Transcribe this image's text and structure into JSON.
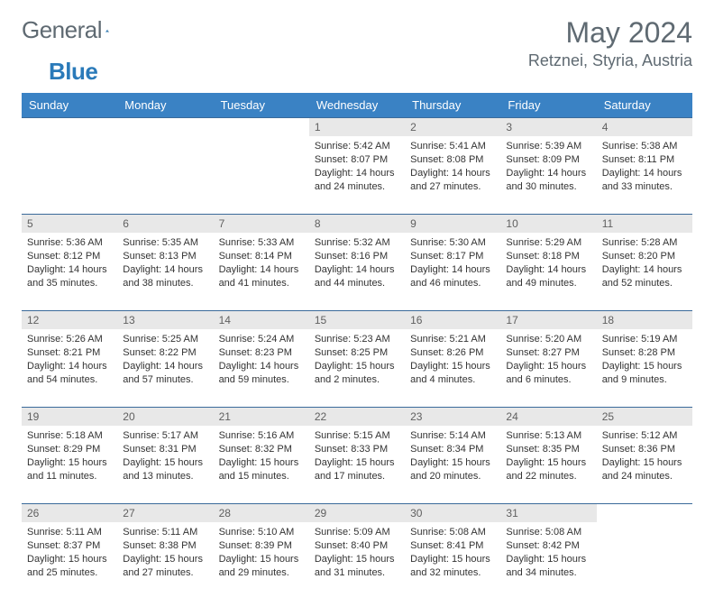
{
  "brand": {
    "name1": "General",
    "name2": "Blue"
  },
  "title": "May 2024",
  "location": "Retznei, Styria, Austria",
  "colors": {
    "header_bg": "#3a82c4",
    "border": "#3a6a9a",
    "daybar": "#e8e8e8",
    "text": "#333333",
    "muted": "#5f6a72"
  },
  "weekdays": [
    "Sunday",
    "Monday",
    "Tuesday",
    "Wednesday",
    "Thursday",
    "Friday",
    "Saturday"
  ],
  "weeks": [
    [
      null,
      null,
      null,
      {
        "d": "1",
        "sr": "Sunrise: 5:42 AM",
        "ss": "Sunset: 8:07 PM",
        "dl": "Daylight: 14 hours and 24 minutes."
      },
      {
        "d": "2",
        "sr": "Sunrise: 5:41 AM",
        "ss": "Sunset: 8:08 PM",
        "dl": "Daylight: 14 hours and 27 minutes."
      },
      {
        "d": "3",
        "sr": "Sunrise: 5:39 AM",
        "ss": "Sunset: 8:09 PM",
        "dl": "Daylight: 14 hours and 30 minutes."
      },
      {
        "d": "4",
        "sr": "Sunrise: 5:38 AM",
        "ss": "Sunset: 8:11 PM",
        "dl": "Daylight: 14 hours and 33 minutes."
      }
    ],
    [
      {
        "d": "5",
        "sr": "Sunrise: 5:36 AM",
        "ss": "Sunset: 8:12 PM",
        "dl": "Daylight: 14 hours and 35 minutes."
      },
      {
        "d": "6",
        "sr": "Sunrise: 5:35 AM",
        "ss": "Sunset: 8:13 PM",
        "dl": "Daylight: 14 hours and 38 minutes."
      },
      {
        "d": "7",
        "sr": "Sunrise: 5:33 AM",
        "ss": "Sunset: 8:14 PM",
        "dl": "Daylight: 14 hours and 41 minutes."
      },
      {
        "d": "8",
        "sr": "Sunrise: 5:32 AM",
        "ss": "Sunset: 8:16 PM",
        "dl": "Daylight: 14 hours and 44 minutes."
      },
      {
        "d": "9",
        "sr": "Sunrise: 5:30 AM",
        "ss": "Sunset: 8:17 PM",
        "dl": "Daylight: 14 hours and 46 minutes."
      },
      {
        "d": "10",
        "sr": "Sunrise: 5:29 AM",
        "ss": "Sunset: 8:18 PM",
        "dl": "Daylight: 14 hours and 49 minutes."
      },
      {
        "d": "11",
        "sr": "Sunrise: 5:28 AM",
        "ss": "Sunset: 8:20 PM",
        "dl": "Daylight: 14 hours and 52 minutes."
      }
    ],
    [
      {
        "d": "12",
        "sr": "Sunrise: 5:26 AM",
        "ss": "Sunset: 8:21 PM",
        "dl": "Daylight: 14 hours and 54 minutes."
      },
      {
        "d": "13",
        "sr": "Sunrise: 5:25 AM",
        "ss": "Sunset: 8:22 PM",
        "dl": "Daylight: 14 hours and 57 minutes."
      },
      {
        "d": "14",
        "sr": "Sunrise: 5:24 AM",
        "ss": "Sunset: 8:23 PM",
        "dl": "Daylight: 14 hours and 59 minutes."
      },
      {
        "d": "15",
        "sr": "Sunrise: 5:23 AM",
        "ss": "Sunset: 8:25 PM",
        "dl": "Daylight: 15 hours and 2 minutes."
      },
      {
        "d": "16",
        "sr": "Sunrise: 5:21 AM",
        "ss": "Sunset: 8:26 PM",
        "dl": "Daylight: 15 hours and 4 minutes."
      },
      {
        "d": "17",
        "sr": "Sunrise: 5:20 AM",
        "ss": "Sunset: 8:27 PM",
        "dl": "Daylight: 15 hours and 6 minutes."
      },
      {
        "d": "18",
        "sr": "Sunrise: 5:19 AM",
        "ss": "Sunset: 8:28 PM",
        "dl": "Daylight: 15 hours and 9 minutes."
      }
    ],
    [
      {
        "d": "19",
        "sr": "Sunrise: 5:18 AM",
        "ss": "Sunset: 8:29 PM",
        "dl": "Daylight: 15 hours and 11 minutes."
      },
      {
        "d": "20",
        "sr": "Sunrise: 5:17 AM",
        "ss": "Sunset: 8:31 PM",
        "dl": "Daylight: 15 hours and 13 minutes."
      },
      {
        "d": "21",
        "sr": "Sunrise: 5:16 AM",
        "ss": "Sunset: 8:32 PM",
        "dl": "Daylight: 15 hours and 15 minutes."
      },
      {
        "d": "22",
        "sr": "Sunrise: 5:15 AM",
        "ss": "Sunset: 8:33 PM",
        "dl": "Daylight: 15 hours and 17 minutes."
      },
      {
        "d": "23",
        "sr": "Sunrise: 5:14 AM",
        "ss": "Sunset: 8:34 PM",
        "dl": "Daylight: 15 hours and 20 minutes."
      },
      {
        "d": "24",
        "sr": "Sunrise: 5:13 AM",
        "ss": "Sunset: 8:35 PM",
        "dl": "Daylight: 15 hours and 22 minutes."
      },
      {
        "d": "25",
        "sr": "Sunrise: 5:12 AM",
        "ss": "Sunset: 8:36 PM",
        "dl": "Daylight: 15 hours and 24 minutes."
      }
    ],
    [
      {
        "d": "26",
        "sr": "Sunrise: 5:11 AM",
        "ss": "Sunset: 8:37 PM",
        "dl": "Daylight: 15 hours and 25 minutes."
      },
      {
        "d": "27",
        "sr": "Sunrise: 5:11 AM",
        "ss": "Sunset: 8:38 PM",
        "dl": "Daylight: 15 hours and 27 minutes."
      },
      {
        "d": "28",
        "sr": "Sunrise: 5:10 AM",
        "ss": "Sunset: 8:39 PM",
        "dl": "Daylight: 15 hours and 29 minutes."
      },
      {
        "d": "29",
        "sr": "Sunrise: 5:09 AM",
        "ss": "Sunset: 8:40 PM",
        "dl": "Daylight: 15 hours and 31 minutes."
      },
      {
        "d": "30",
        "sr": "Sunrise: 5:08 AM",
        "ss": "Sunset: 8:41 PM",
        "dl": "Daylight: 15 hours and 32 minutes."
      },
      {
        "d": "31",
        "sr": "Sunrise: 5:08 AM",
        "ss": "Sunset: 8:42 PM",
        "dl": "Daylight: 15 hours and 34 minutes."
      },
      null
    ]
  ]
}
